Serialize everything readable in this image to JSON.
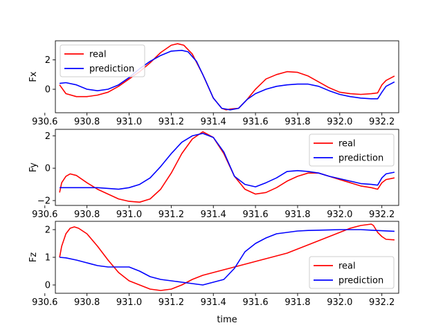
{
  "colors": {
    "real": "#ff0000",
    "prediction": "#0000ff"
  },
  "xlabel": "time",
  "chart_data": [
    {
      "type": "line",
      "ylabel": "Fx",
      "xlim": [
        930.65,
        932.28
      ],
      "ylim": [
        -1.6,
        3.3
      ],
      "xticks": [
        930.6,
        930.8,
        931.0,
        931.2,
        931.4,
        931.6,
        931.8,
        932.0,
        932.2
      ],
      "xtick_labels": [
        "930.6",
        "930.8",
        "931.0",
        "931.2",
        "931.4",
        "931.6",
        "931.8",
        "932.0",
        "932.2"
      ],
      "yticks": [
        0,
        2
      ],
      "ytick_labels": [
        "0",
        "2"
      ],
      "legend_position": "top-left",
      "series": [
        {
          "name": "real",
          "color": "#ff0000",
          "x": [
            930.67,
            930.7,
            930.75,
            930.8,
            930.85,
            930.9,
            930.95,
            931.0,
            931.05,
            931.1,
            931.15,
            931.2,
            931.23,
            931.26,
            931.3,
            931.35,
            931.4,
            931.44,
            931.46,
            931.48,
            931.52,
            931.56,
            931.6,
            931.65,
            931.7,
            931.75,
            931.8,
            931.85,
            931.9,
            931.95,
            932.0,
            932.05,
            932.1,
            932.15,
            932.18,
            932.2,
            932.22,
            932.26
          ],
          "y": [
            0.3,
            -0.3,
            -0.5,
            -0.5,
            -0.4,
            -0.2,
            0.2,
            0.7,
            1.2,
            1.8,
            2.5,
            3.0,
            3.1,
            3.0,
            2.4,
            1.0,
            -0.6,
            -1.3,
            -1.4,
            -1.35,
            -1.3,
            -0.7,
            0.0,
            0.7,
            1.0,
            1.2,
            1.15,
            0.9,
            0.5,
            0.1,
            -0.2,
            -0.3,
            -0.35,
            -0.3,
            -0.25,
            0.3,
            0.6,
            0.9
          ]
        },
        {
          "name": "prediction",
          "color": "#0000ff",
          "x": [
            930.67,
            930.7,
            930.75,
            930.8,
            930.85,
            930.9,
            930.95,
            931.0,
            931.05,
            931.1,
            931.15,
            931.2,
            931.25,
            931.28,
            931.32,
            931.36,
            931.4,
            931.44,
            931.48,
            931.52,
            931.56,
            931.6,
            931.65,
            931.7,
            931.75,
            931.8,
            931.85,
            931.9,
            931.95,
            932.0,
            932.05,
            932.1,
            932.15,
            932.18,
            932.2,
            932.22,
            932.26
          ],
          "y": [
            0.4,
            0.45,
            0.3,
            0.0,
            -0.1,
            0.0,
            0.3,
            0.8,
            1.4,
            1.9,
            2.3,
            2.6,
            2.65,
            2.55,
            1.9,
            0.7,
            -0.6,
            -1.3,
            -1.4,
            -1.3,
            -0.7,
            -0.3,
            0.0,
            0.2,
            0.3,
            0.35,
            0.35,
            0.2,
            -0.1,
            -0.35,
            -0.5,
            -0.6,
            -0.65,
            -0.65,
            -0.2,
            0.2,
            0.5
          ]
        }
      ]
    },
    {
      "type": "line",
      "ylabel": "Fy",
      "xlim": [
        930.65,
        932.28
      ],
      "ylim": [
        -2.3,
        2.4
      ],
      "yticks": [
        -2,
        0,
        2
      ],
      "ytick_labels": [
        "−2",
        "0",
        "2"
      ],
      "legend_position": "top-right",
      "series": [
        {
          "name": "real",
          "color": "#ff0000",
          "x": [
            930.67,
            930.68,
            930.7,
            930.72,
            930.75,
            930.8,
            930.85,
            930.9,
            930.95,
            931.0,
            931.05,
            931.1,
            931.15,
            931.2,
            931.25,
            931.3,
            931.35,
            931.4,
            931.45,
            931.5,
            931.55,
            931.6,
            931.65,
            931.7,
            931.75,
            931.8,
            931.85,
            931.9,
            931.95,
            932.0,
            932.05,
            932.1,
            932.15,
            932.18,
            932.2,
            932.22,
            932.26
          ],
          "y": [
            -1.5,
            -0.9,
            -0.5,
            -0.35,
            -0.45,
            -0.9,
            -1.3,
            -1.6,
            -1.9,
            -2.05,
            -2.1,
            -1.9,
            -1.3,
            -0.3,
            0.9,
            1.8,
            2.25,
            1.9,
            0.9,
            -0.5,
            -1.3,
            -1.6,
            -1.5,
            -1.2,
            -0.8,
            -0.5,
            -0.3,
            -0.3,
            -0.5,
            -0.7,
            -0.9,
            -1.1,
            -1.2,
            -1.3,
            -0.9,
            -0.7,
            -0.6
          ]
        },
        {
          "name": "prediction",
          "color": "#0000ff",
          "x": [
            930.67,
            930.7,
            930.75,
            930.8,
            930.85,
            930.9,
            930.95,
            931.0,
            931.05,
            931.1,
            931.15,
            931.2,
            931.25,
            931.3,
            931.35,
            931.4,
            931.45,
            931.5,
            931.55,
            931.6,
            931.65,
            931.7,
            931.75,
            931.8,
            931.85,
            931.9,
            931.95,
            932.0,
            932.05,
            932.1,
            932.15,
            932.18,
            932.2,
            932.22,
            932.26
          ],
          "y": [
            -1.2,
            -1.2,
            -1.2,
            -1.2,
            -1.2,
            -1.25,
            -1.3,
            -1.2,
            -1.0,
            -0.6,
            0.1,
            0.9,
            1.6,
            2.0,
            2.15,
            1.9,
            1.0,
            -0.5,
            -1.0,
            -1.15,
            -0.9,
            -0.6,
            -0.2,
            -0.15,
            -0.2,
            -0.3,
            -0.5,
            -0.65,
            -0.8,
            -0.95,
            -1.0,
            -1.05,
            -0.6,
            -0.35,
            -0.25
          ]
        }
      ]
    },
    {
      "type": "line",
      "ylabel": "Fz",
      "xlim": [
        930.65,
        932.28
      ],
      "ylim": [
        -0.3,
        2.3
      ],
      "yticks": [
        0,
        1,
        2
      ],
      "ytick_labels": [
        "0",
        "1",
        "2"
      ],
      "legend_position": "bottom-right",
      "series": [
        {
          "name": "real",
          "color": "#ff0000",
          "x": [
            930.67,
            930.68,
            930.7,
            930.72,
            930.74,
            930.76,
            930.8,
            930.85,
            930.9,
            930.95,
            931.0,
            931.05,
            931.1,
            931.15,
            931.2,
            931.25,
            931.3,
            931.35,
            931.4,
            931.45,
            931.5,
            931.55,
            931.6,
            931.65,
            931.7,
            931.75,
            931.8,
            931.85,
            931.9,
            931.95,
            932.0,
            932.05,
            932.1,
            932.15,
            932.16,
            932.18,
            932.2,
            932.22,
            932.26
          ],
          "y": [
            1.0,
            1.4,
            1.85,
            2.05,
            2.1,
            2.05,
            1.85,
            1.4,
            0.9,
            0.45,
            0.15,
            0.0,
            -0.15,
            -0.2,
            -0.15,
            0.0,
            0.2,
            0.35,
            0.45,
            0.55,
            0.65,
            0.75,
            0.85,
            0.95,
            1.05,
            1.15,
            1.3,
            1.45,
            1.6,
            1.75,
            1.9,
            2.05,
            2.15,
            2.2,
            2.15,
            1.9,
            1.75,
            1.65,
            1.63
          ]
        },
        {
          "name": "prediction",
          "color": "#0000ff",
          "x": [
            930.67,
            930.7,
            930.75,
            930.8,
            930.85,
            930.9,
            930.95,
            931.0,
            931.05,
            931.1,
            931.15,
            931.2,
            931.25,
            931.3,
            931.35,
            931.4,
            931.45,
            931.5,
            931.55,
            931.6,
            931.65,
            931.7,
            931.75,
            931.8,
            931.85,
            931.9,
            931.95,
            932.0,
            932.05,
            932.1,
            932.15,
            932.2,
            932.26
          ],
          "y": [
            1.0,
            0.98,
            0.9,
            0.8,
            0.7,
            0.65,
            0.65,
            0.65,
            0.5,
            0.3,
            0.2,
            0.15,
            0.1,
            0.05,
            0.0,
            0.1,
            0.2,
            0.6,
            1.2,
            1.5,
            1.7,
            1.85,
            1.9,
            1.95,
            1.97,
            1.98,
            1.99,
            2.0,
            2.0,
            2.0,
            1.98,
            1.96,
            1.94
          ]
        }
      ]
    }
  ]
}
